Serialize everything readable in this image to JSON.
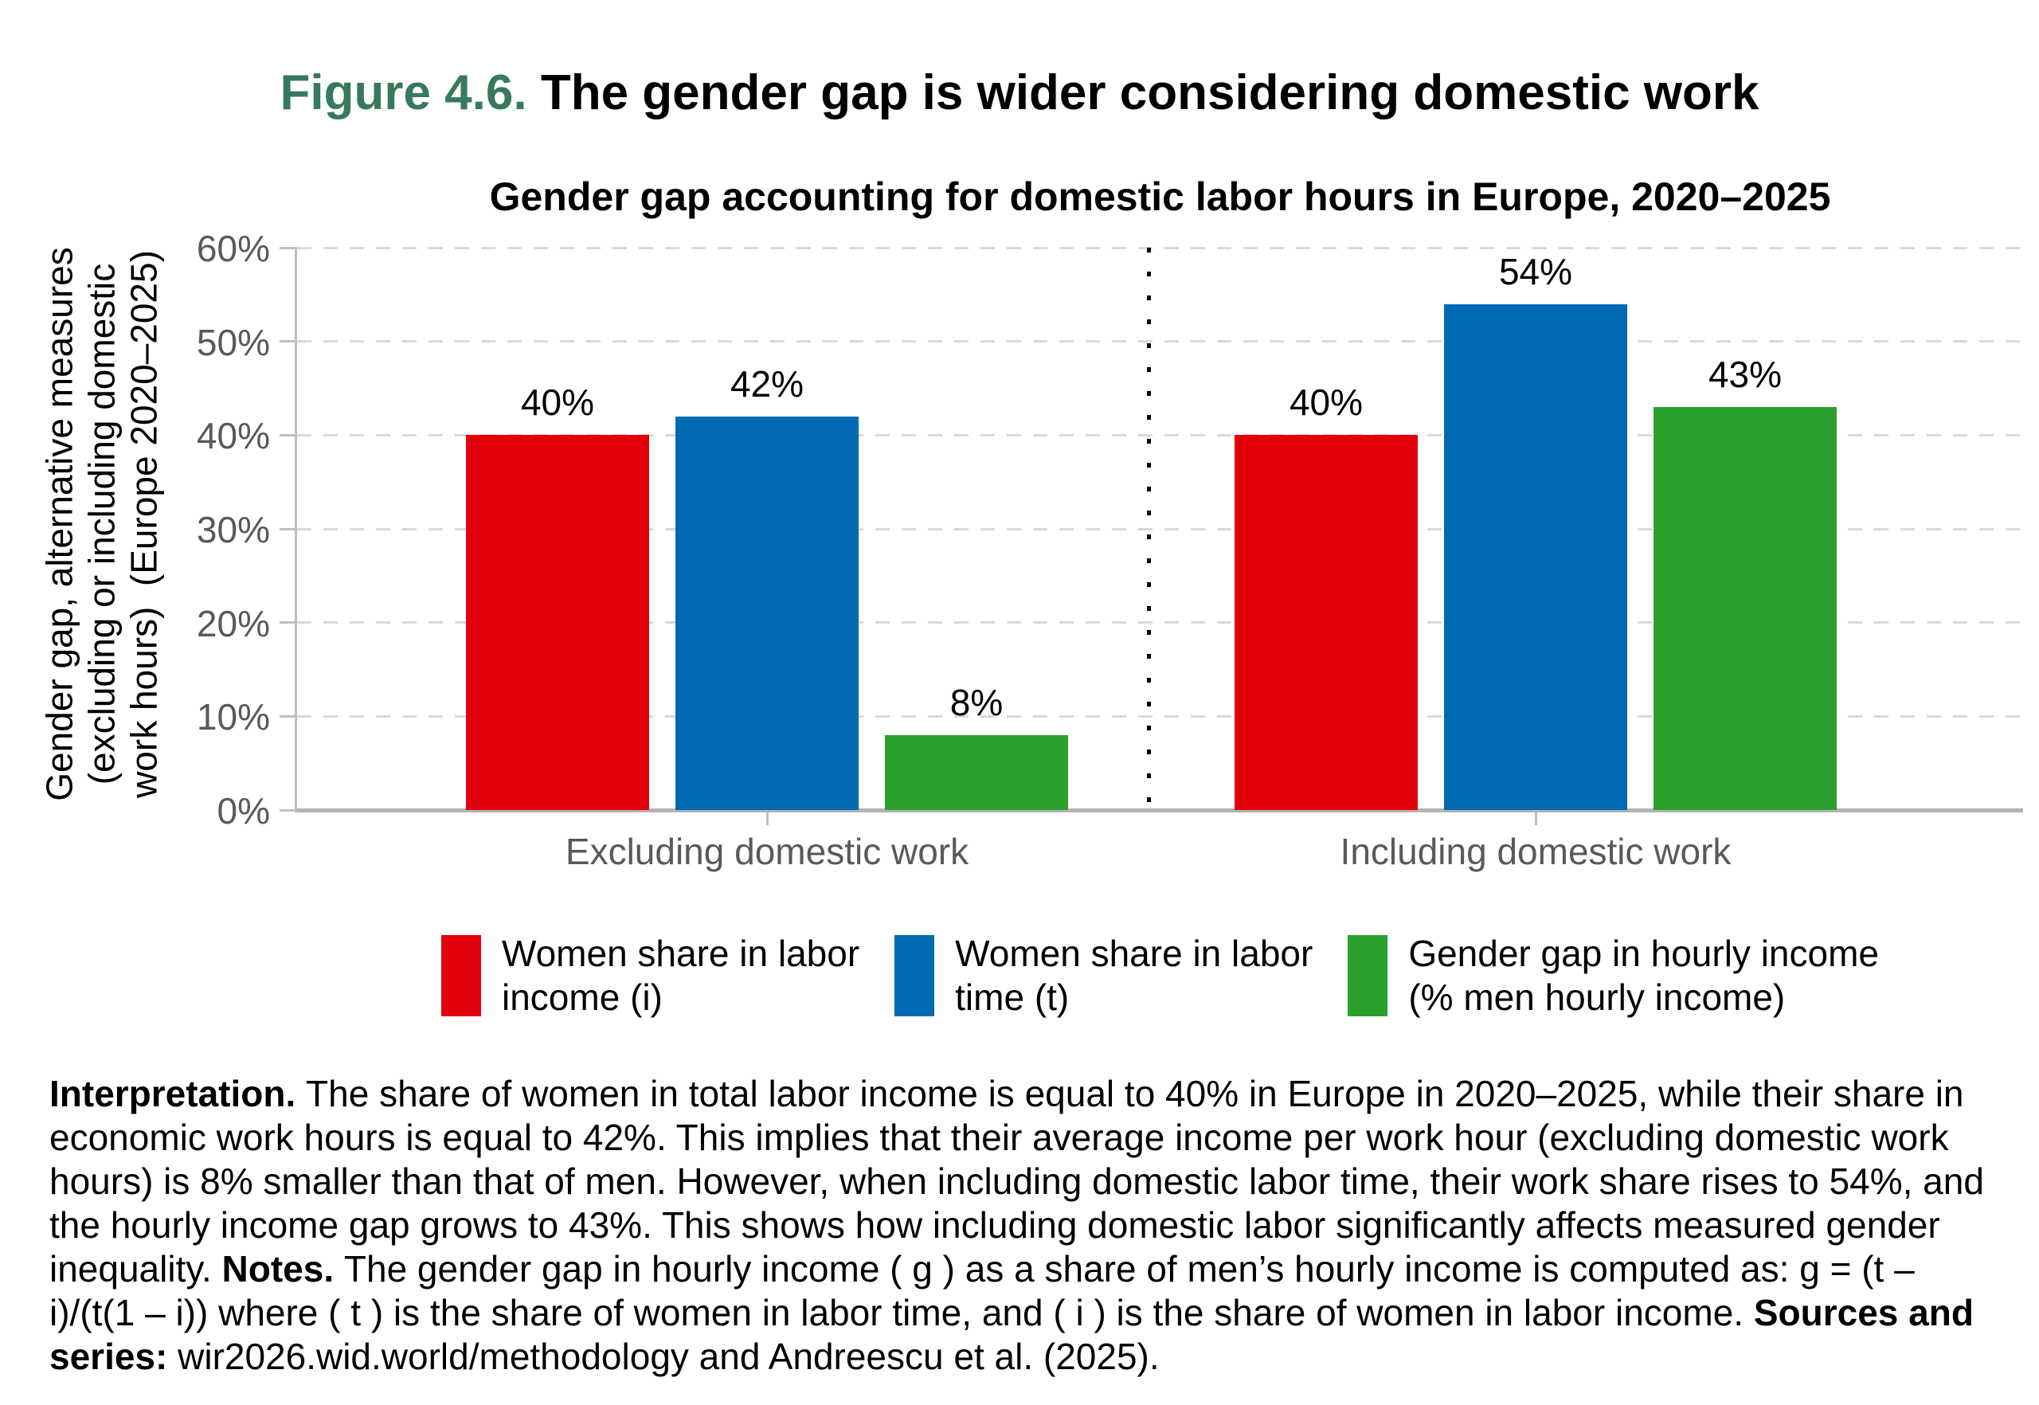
{
  "header": {
    "figure_label": "Figure 4.6.",
    "figure_title": "The gender gap is wider considering domestic work"
  },
  "colors": {
    "figure_label_green": "#37795d",
    "axis_text_gray": "#595959",
    "gridline_gray": "#d9d9d9",
    "axis_line_gray": "#bfbfbf",
    "red": "#e2000d",
    "blue": "#0069b4",
    "green": "#2ba02c"
  },
  "chart_data": {
    "type": "bar",
    "title": "Gender gap accounting for domestic labor hours in Europe, 2020–2025",
    "ylabel": "Gender gap, alternative measures\n(excluding or including domestic\nwork hours)  (Europe 2020–2025)",
    "xlabel": "",
    "ylim": [
      0,
      60
    ],
    "grid": "horizontal dashed",
    "legend_position": "bottom",
    "yticks": [
      {
        "value": 0,
        "label": "0%"
      },
      {
        "value": 10,
        "label": "10%"
      },
      {
        "value": 20,
        "label": "20%"
      },
      {
        "value": 30,
        "label": "30%"
      },
      {
        "value": 40,
        "label": "40%"
      },
      {
        "value": 50,
        "label": "50%"
      },
      {
        "value": 60,
        "label": "60%"
      }
    ],
    "categories": [
      "Excluding domestic work",
      "Including domestic work"
    ],
    "series": [
      {
        "id": "women-share-labor-income",
        "name": "Women share in labor income (i)",
        "legend_label": "Women share in labor\nincome (i)",
        "color": "#e2000d",
        "values": [
          40,
          40
        ],
        "labels": [
          "40%",
          "40%"
        ]
      },
      {
        "id": "women-share-labor-time",
        "name": "Women share in labor time (t)",
        "legend_label": "Women share in labor\ntime (t)",
        "color": "#0069b4",
        "values": [
          42,
          54
        ],
        "labels": [
          "42%",
          "54%"
        ]
      },
      {
        "id": "gender-gap-hourly-income",
        "name": "Gender gap in hourly income (% men hourly income)",
        "legend_label": "Gender gap in hourly income\n(% men hourly income)",
        "color": "#2ba02c",
        "values": [
          8,
          43
        ],
        "labels": [
          "8%",
          "43%"
        ]
      }
    ]
  },
  "caption": {
    "segments": [
      {
        "bold": true,
        "text": "Interpretation. "
      },
      {
        "bold": false,
        "text": "The share of women in total labor income is equal to 40% in Europe in 2020–2025, while their share in economic work hours is equal to 42%. This implies that their average income per work hour (excluding domestic work hours) is 8% smaller than that of men. However, when including domestic labor time, their work share rises to 54%, and the hourly income gap grows to 43%. This shows how including domestic labor significantly affects measured gender inequality. "
      },
      {
        "bold": true,
        "text": "Notes. "
      },
      {
        "bold": false,
        "text": "The gender gap in hourly income ( g ) as a share of men’s hourly income is computed as: g = (t – i)/(t(1 – i)) where ( t ) is the share of women in labor time, and ( i ) is the share of women in labor income. "
      },
      {
        "bold": true,
        "text": "Sources and series: "
      },
      {
        "bold": false,
        "text": "wir2026.wid.world/methodology and Andreescu et al. (2025)."
      }
    ]
  }
}
